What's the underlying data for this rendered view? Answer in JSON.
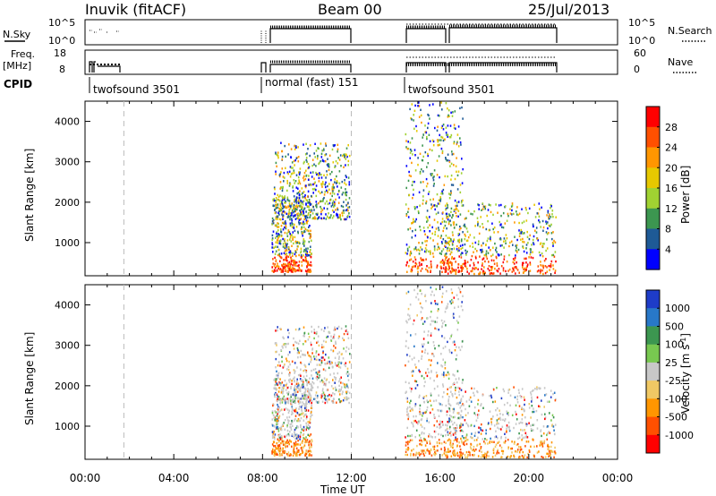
{
  "header": {
    "station": "Inuvik (fitACF)",
    "beam": "Beam 00",
    "date": "25/Jul/2013"
  },
  "params": {
    "nsky_label": "N.Sky",
    "nsky_ticks": [
      "10^5",
      "10^0"
    ],
    "nsearch_label": "N.Search",
    "nsearch_ticks": [
      "10^5",
      "10^0"
    ],
    "freq_label_1": "Freq.",
    "freq_label_2": "[MHz]",
    "freq_ticks": [
      "18",
      "8"
    ],
    "nave_label": "Nave",
    "nave_ticks": [
      "60",
      "0"
    ],
    "cpid_label": "CPID",
    "cpid_segments": [
      {
        "name": "twofsound 3501",
        "start_hr": 1.1
      },
      {
        "name": "normal (fast) 151",
        "start_hr": 7.9
      },
      {
        "name": "twofsound 3501",
        "start_hr": 14.4
      }
    ]
  },
  "chart_data": [
    {
      "type": "heatmap",
      "title": "",
      "xlabel": "Time UT",
      "ylabel": "Slant Range [km]",
      "x_ticks": [
        "00:00",
        "04:00",
        "08:00",
        "12:00",
        "16:00",
        "20:00",
        "00:00"
      ],
      "xlim_hours": [
        0,
        24
      ],
      "ylim_km": [
        180,
        4500
      ],
      "y_ticks": [
        1000,
        2000,
        3000,
        4000
      ],
      "colorbar_label": "Power [dB]",
      "colorbar_ticks": [
        "28",
        "24",
        "20",
        "16",
        "12",
        "8",
        "4"
      ],
      "colorbar_colors": [
        "#ff0000",
        "#ff5000",
        "#ff9600",
        "#e6c800",
        "#a0d232",
        "#3c9650",
        "#1e5a96",
        "#0000ff"
      ],
      "scatter_regions": [
        {
          "t": [
            8.4,
            10.2
          ],
          "r": [
            300,
            2200
          ],
          "cmap": "power"
        },
        {
          "t": [
            8.5,
            11.9
          ],
          "r": [
            1600,
            3500
          ],
          "cmap": "power"
        },
        {
          "t": [
            14.4,
            17.0
          ],
          "r": [
            300,
            4500
          ],
          "cmap": "power"
        },
        {
          "t": [
            16.2,
            21.2
          ],
          "r": [
            250,
            2000
          ],
          "cmap": "power"
        }
      ]
    },
    {
      "type": "heatmap",
      "title": "",
      "xlabel": "Time UT",
      "ylabel": "Slant Range [km]",
      "x_ticks": [
        "00:00",
        "04:00",
        "08:00",
        "12:00",
        "16:00",
        "20:00",
        "00:00"
      ],
      "xlim_hours": [
        0,
        24
      ],
      "ylim_km": [
        180,
        4500
      ],
      "y_ticks": [
        1000,
        2000,
        3000,
        4000
      ],
      "colorbar_label": "Velocity [m s-1]",
      "colorbar_ticks": [
        "1000",
        "500",
        "100",
        "25",
        "-25",
        "-100",
        "-500",
        "-1000"
      ],
      "colorbar_colors": [
        "#1e3cc8",
        "#2878c8",
        "#3c9650",
        "#78c850",
        "#c8c8c8",
        "#f0c864",
        "#ff9600",
        "#ff5000",
        "#ff0000"
      ],
      "scatter_regions": [
        {
          "t": [
            8.4,
            10.2
          ],
          "r": [
            300,
            2200
          ],
          "cmap": "velocity"
        },
        {
          "t": [
            8.5,
            11.9
          ],
          "r": [
            1600,
            3500
          ],
          "cmap": "velocity"
        },
        {
          "t": [
            14.4,
            17.0
          ],
          "r": [
            300,
            4500
          ],
          "cmap": "velocity"
        },
        {
          "t": [
            16.2,
            21.2
          ],
          "r": [
            250,
            2000
          ],
          "cmap": "velocity"
        }
      ]
    }
  ]
}
